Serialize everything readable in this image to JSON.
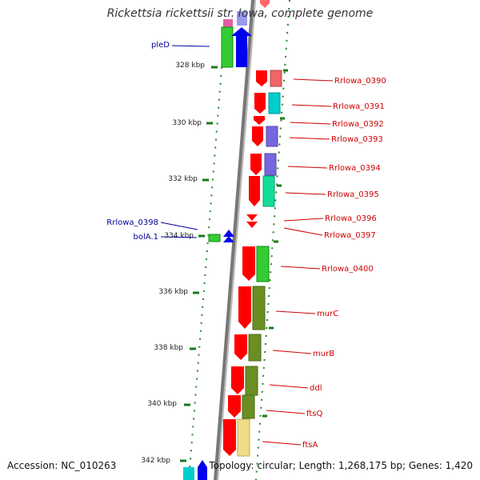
{
  "title": "Rickettsia rickettsii str. Iowa, complete genome",
  "accession": "Accession: NC_010263",
  "summary": "Topology: circular; Length: 1,268,175 bp; Genes: 1,420",
  "scale_labels": [
    {
      "kbp": 328,
      "label": "328 kbp"
    },
    {
      "kbp": 330,
      "label": "330 kbp"
    },
    {
      "kbp": 332,
      "label": "332 kbp"
    },
    {
      "kbp": 334,
      "label": "334 kbp"
    },
    {
      "kbp": 336,
      "label": "336 kbp"
    },
    {
      "kbp": 338,
      "label": "338 kbp"
    },
    {
      "kbp": 340,
      "label": "340 kbp"
    },
    {
      "kbp": 342,
      "label": "342 kbp"
    }
  ],
  "gene_labels_reverse": [
    "pleD",
    "Rrlowa_0398",
    "bolA.1"
  ],
  "gene_labels_forward": [
    "Rrlowa_0390",
    "Rrlowa_0391",
    "Rrlowa_0392",
    "Rrlowa_0393",
    "Rrlowa_0394",
    "Rrlowa_0395",
    "Rrlowa_0396",
    "Rrlowa_0397",
    "Rrlowa_0400",
    "murC",
    "murB",
    "ddl",
    "ftsQ",
    "ftsA"
  ],
  "colors": {
    "forward_label": "#cc0000",
    "reverse_label": "#000099",
    "cds": "#ff0000",
    "tick": "#1a7a1a"
  }
}
